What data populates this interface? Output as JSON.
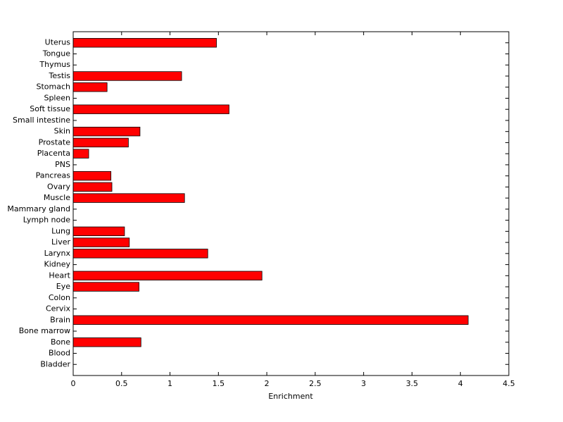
{
  "chart_data": {
    "type": "barh",
    "xlabel": "Enrichment",
    "categories": [
      "Bladder",
      "Blood",
      "Bone",
      "Bone marrow",
      "Brain",
      "Cervix",
      "Colon",
      "Eye",
      "Heart",
      "Kidney",
      "Larynx",
      "Liver",
      "Lung",
      "Lymph node",
      "Mammary gland",
      "Muscle",
      "Ovary",
      "Pancreas",
      "PNS",
      "Placenta",
      "Prostate",
      "Skin",
      "Small intestine",
      "Soft tissue",
      "Spleen",
      "Stomach",
      "Testis",
      "Thymus",
      "Tongue",
      "Uterus"
    ],
    "values": [
      0,
      0,
      0.7,
      0,
      4.08,
      0,
      0,
      0.68,
      1.95,
      0,
      1.39,
      0.58,
      0.53,
      0,
      0,
      1.15,
      0.4,
      0.39,
      0,
      0.16,
      0.57,
      0.69,
      0,
      1.61,
      0,
      0.35,
      1.12,
      0,
      0,
      1.48
    ],
    "color": "#ff0000",
    "xlim": [
      0,
      4.5
    ],
    "xticks": [
      0,
      0.5,
      1,
      1.5,
      2,
      2.5,
      3,
      3.5,
      4,
      4.5
    ],
    "grid": false
  }
}
